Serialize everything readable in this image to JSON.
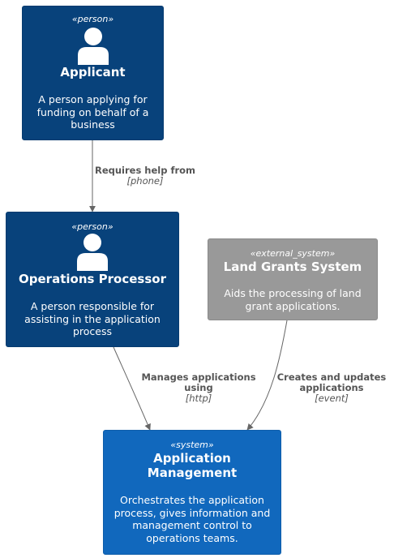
{
  "nodes": {
    "applicant": {
      "stereotype": "«person»",
      "title": "Applicant",
      "description": "A person applying for funding on behalf of a business",
      "color": "#08427b"
    },
    "operations_processor": {
      "stereotype": "«person»",
      "title": "Operations Processor",
      "description": "A person responsible for assisting in the application process",
      "color": "#08427b"
    },
    "land_grants_system": {
      "stereotype": "«external_system»",
      "title": "Land Grants System",
      "description": "Aids the processing of land grant applications.",
      "color": "#999999"
    },
    "application_management": {
      "stereotype": "«system»",
      "title": "Application Management",
      "description": "Orchestrates the application process, gives information and management control to operations teams.",
      "color": "#1168bd"
    }
  },
  "edges": [
    {
      "from": "Applicant",
      "to": "Operations Processor",
      "label": "Requires help from",
      "technology": "[phone]"
    },
    {
      "from": "Operations Processor",
      "to": "Application Management",
      "label": "Manages applications using",
      "technology": "[http]"
    },
    {
      "from": "Land Grants System",
      "to": "Application Management",
      "label": "Creates and updates applications",
      "technology": "[event]"
    }
  ]
}
